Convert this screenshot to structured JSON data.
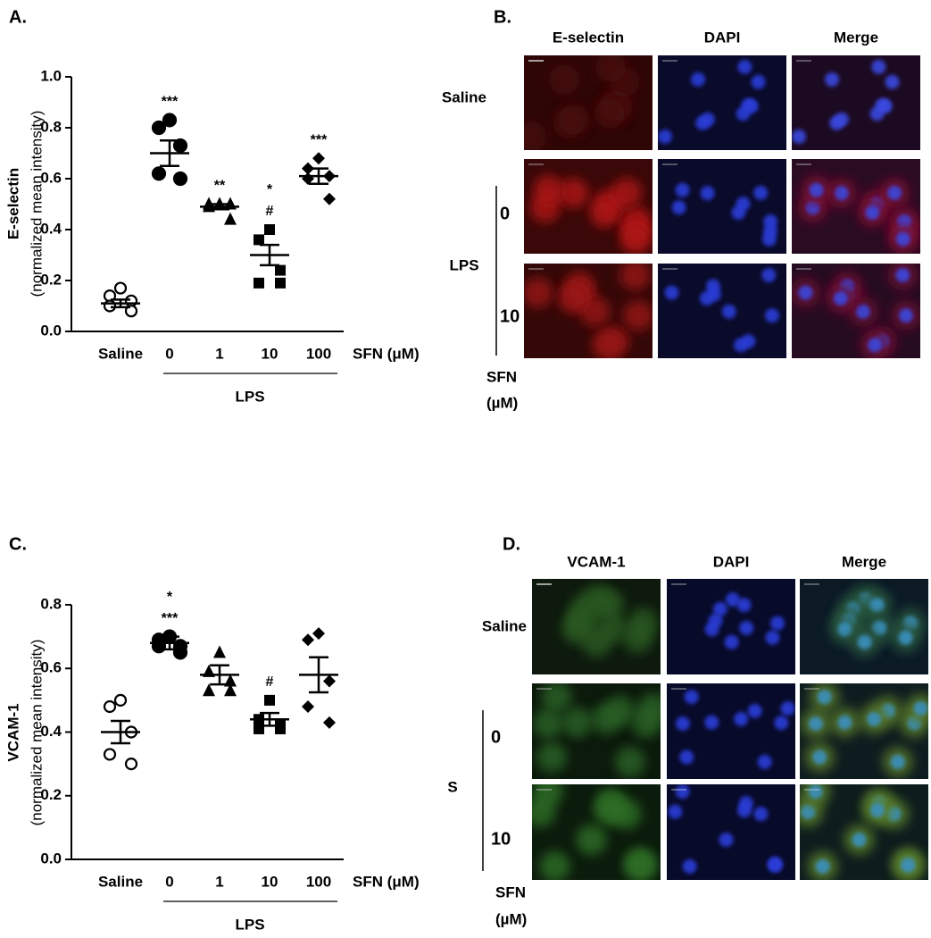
{
  "chart_data": [
    {
      "type": "dot",
      "panel_label": "A.",
      "y_label": [
        "E-selectin",
        "(normalized mean intensity)"
      ],
      "categories": [
        "Saline",
        "0",
        "1",
        "10",
        "100"
      ],
      "x_note": "SFN (μM)",
      "group_label": "LPS",
      "ylim": [
        0,
        1
      ],
      "yticks": [
        {
          "value": 0,
          "label": "0.0"
        },
        0.2,
        0.4,
        0.6,
        0.8,
        {
          "value": 1,
          "label": "1.0"
        }
      ],
      "markers": [
        "open-circle",
        "circle",
        "triangle",
        "square",
        "diamond"
      ],
      "color": "#000000",
      "points": [
        [
          0.17,
          0.14,
          0.12,
          0.1,
          0.08
        ],
        [
          0.83,
          0.8,
          0.73,
          0.62,
          0.6
        ],
        [
          0.5,
          0.5,
          0.5,
          0.49,
          0.44
        ],
        [
          0.4,
          0.36,
          0.24,
          0.19,
          0.19
        ],
        [
          0.68,
          0.64,
          0.61,
          0.6,
          0.52
        ]
      ],
      "means": [
        0.11,
        0.7,
        0.49,
        0.3,
        0.61
      ],
      "sems": [
        0.015,
        0.05,
        0.01,
        0.04,
        0.03
      ],
      "annotations": [
        [],
        [
          "***"
        ],
        [
          "**"
        ],
        [
          "*",
          "#"
        ],
        [
          "***"
        ]
      ]
    },
    {
      "type": "dot",
      "panel_label": "C.",
      "y_label": [
        "VCAM-1",
        "(normalized mean intensity)"
      ],
      "categories": [
        "Saline",
        "0",
        "1",
        "10",
        "100"
      ],
      "x_note": "SFN (μM)",
      "group_label": "LPS",
      "ylim": [
        0,
        0.8
      ],
      "yticks": [
        {
          "value": 0,
          "label": "0.0"
        },
        0.2,
        0.4,
        0.6,
        0.8
      ],
      "markers": [
        "open-circle",
        "circle",
        "triangle",
        "square",
        "diamond"
      ],
      "color": "#000000",
      "points": [
        [
          0.5,
          0.48,
          0.4,
          0.33,
          0.3
        ],
        [
          0.7,
          0.69,
          0.67,
          0.67,
          0.65
        ],
        [
          0.65,
          0.59,
          0.56,
          0.53,
          0.53
        ],
        [
          0.5,
          0.44,
          0.42,
          0.41,
          0.41
        ],
        [
          0.71,
          0.69,
          0.56,
          0.48,
          0.43
        ]
      ],
      "means": [
        0.4,
        0.68,
        0.58,
        0.44,
        0.58
      ],
      "sems": [
        0.035,
        0.02,
        0.03,
        0.02,
        0.055
      ],
      "annotations": [
        [],
        [
          "*",
          "***"
        ],
        [],
        [
          "#"
        ],
        []
      ]
    }
  ],
  "image_panels": [
    {
      "panel_label": "B.",
      "columns": [
        "E-selectin",
        "DAPI",
        "Merge"
      ],
      "rows": [
        "Saline",
        "0",
        "10"
      ],
      "group_label": "LPS",
      "axis_label": [
        "SFN",
        "(µM)"
      ]
    },
    {
      "panel_label": "D.",
      "columns": [
        "VCAM-1",
        "DAPI",
        "Merge"
      ],
      "rows": [
        "Saline",
        "0",
        "10"
      ],
      "group_label": "S",
      "axis_label": [
        "SFN",
        "(µM)"
      ]
    }
  ]
}
